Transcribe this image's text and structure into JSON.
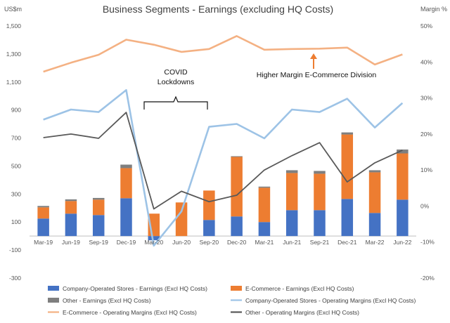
{
  "chart_data": {
    "type": "bar",
    "title": "Business Segments - Earnings (excluding HQ Costs)",
    "y_left_unit": "US$m",
    "y_right_unit": "Margin %",
    "ylim_left": [
      -300,
      1500
    ],
    "ylim_right": [
      -20,
      50
    ],
    "yticks_left": [
      "1,500",
      "1,300",
      "1,100",
      "900",
      "700",
      "500",
      "300",
      "100",
      "-100",
      "-300"
    ],
    "yticks_right": [
      "50%",
      "40%",
      "30%",
      "20%",
      "10%",
      "0%",
      "-10%",
      "-20%"
    ],
    "categories": [
      "Mar-19",
      "Jun-19",
      "Sep-19",
      "Dec-19",
      "Mar-20",
      "Jun-20",
      "Sep-20",
      "Dec-20",
      "Mar-21",
      "Jun-21",
      "Sep-21",
      "Dec-21",
      "Mar-22",
      "Jun-22"
    ],
    "bar_series": [
      {
        "name": "Company-Operated Stores - Earnings (Excl HQ Costs)",
        "color": "#4472C4",
        "values": [
          125,
          160,
          150,
          270,
          -30,
          0,
          115,
          140,
          100,
          185,
          185,
          265,
          165,
          260
        ]
      },
      {
        "name": "E-Commerce - Earnings (Excl HQ Costs)",
        "color": "#ED7D31",
        "values": [
          80,
          90,
          110,
          215,
          160,
          240,
          210,
          425,
          245,
          265,
          260,
          460,
          290,
          330
        ]
      },
      {
        "name": "Other - Earnings (Excl HQ Costs)",
        "color": "#7F7F7F",
        "values": [
          10,
          12,
          12,
          25,
          0,
          0,
          0,
          5,
          8,
          20,
          20,
          15,
          15,
          28
        ]
      }
    ],
    "line_series": [
      {
        "name": "Company-Operated Stores - Operating Margins (Excl HQ Costs)",
        "color": "#9DC3E6",
        "values": [
          24,
          26.8,
          26.1,
          32.2,
          -11,
          -1.5,
          22,
          22.8,
          18.8,
          26.8,
          26.1,
          29.8,
          21.8,
          28.6
        ]
      },
      {
        "name": "E-Commerce - Operating Margins (Excl HQ Costs)",
        "color": "#F4B183",
        "values": [
          37.3,
          39.8,
          42,
          46.2,
          44.8,
          42.8,
          43.6,
          47.2,
          43.4,
          43.6,
          43.7,
          44,
          39.3,
          42.1
        ]
      },
      {
        "name": "Other - Operating Margins (Excl HQ Costs)",
        "color": "#595959",
        "values": [
          19,
          20,
          18.8,
          26,
          -0.8,
          4.1,
          1.2,
          3,
          10,
          14,
          17.6,
          6.7,
          12,
          15.5
        ]
      }
    ],
    "annotations": {
      "covid_line1": "COVID",
      "covid_line2": "Lockdowns",
      "ecom_note": "Higher Margin E-Commerce Division"
    },
    "legend_position": "bottom",
    "grid": false
  }
}
